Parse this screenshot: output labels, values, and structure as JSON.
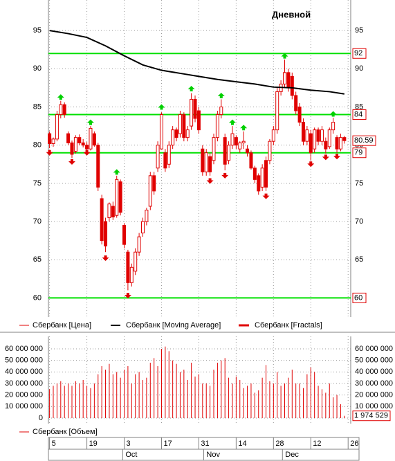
{
  "chart_data": [
    {
      "type": "candlestick",
      "title": "Дневной",
      "xlim": [
        -0.3,
        80.7
      ],
      "ylim": [
        57.5,
        99
      ],
      "yticks": [
        60,
        65,
        70,
        75,
        80,
        85,
        90,
        95
      ],
      "grid": true,
      "levels": [
        92,
        84,
        79,
        60
      ],
      "level_color": "#00e000",
      "current": 80.59,
      "series": [
        {
          "name": "Сбербанк [Цена]",
          "type": "candlestick",
          "color": "#e00000",
          "x": [
            0,
            1,
            2,
            3,
            4,
            5,
            6,
            7,
            8,
            9,
            10,
            11,
            12,
            13,
            14,
            15,
            16,
            17,
            18,
            19,
            20,
            21,
            22,
            23,
            24,
            25,
            26,
            27,
            28,
            29,
            30,
            31,
            32,
            33,
            34,
            35,
            36,
            37,
            38,
            39,
            40,
            41,
            42,
            43,
            44,
            45,
            46,
            47,
            48,
            49,
            50,
            51,
            52,
            53,
            54,
            55,
            56,
            57,
            58,
            59,
            60,
            61,
            62,
            63,
            64,
            65,
            66,
            67,
            68,
            69,
            70,
            71,
            72,
            73,
            74,
            75,
            76,
            77,
            78,
            79
          ],
          "open": [
            81.5,
            80.2,
            80.8,
            84.0,
            85.3,
            81.5,
            80.3,
            79.2,
            81.0,
            80.3,
            80.0,
            79.5,
            81.5,
            80.0,
            73.0,
            70.0,
            70.5,
            72.0,
            70.8,
            75.2,
            69.5,
            66.0,
            62.0,
            63.5,
            66.0,
            68.5,
            70.0,
            72.0,
            76.0,
            77.0,
            79.5,
            79.0,
            77.5,
            80.0,
            82.0,
            81.5,
            84.0,
            81.0,
            82.5,
            86.0,
            84.5,
            79.5,
            76.5,
            78.5,
            78.0,
            81.0,
            84.0,
            81.0,
            78.0,
            80.0,
            81.0,
            79.5,
            80.3,
            79.5,
            79.0,
            77.0,
            76.0,
            74.5,
            78.0,
            78.0,
            80.5,
            82.0,
            87.0,
            88.0,
            89.5,
            89.0,
            86.5,
            85.0,
            83.0,
            80.5,
            81.5,
            79.5,
            82.0,
            80.5,
            80.5,
            79.8,
            82.0,
            81.0,
            79.5,
            81.0
          ],
          "high": [
            81.8,
            81.0,
            84.5,
            85.8,
            85.6,
            81.8,
            80.6,
            81.3,
            81.4,
            80.8,
            80.4,
            82.5,
            81.8,
            80.3,
            73.5,
            70.5,
            72.5,
            72.6,
            76.0,
            75.5,
            69.8,
            66.3,
            64.5,
            66.5,
            68.5,
            70.5,
            71.8,
            76.5,
            76.5,
            80.5,
            84.3,
            79.5,
            80.5,
            82.5,
            82.3,
            84.5,
            84.3,
            82.5,
            86.8,
            86.5,
            85.0,
            80.0,
            79.5,
            79.0,
            81.5,
            84.5,
            86.0,
            81.5,
            80.5,
            82.5,
            81.3,
            80.5,
            81.8,
            80.0,
            79.3,
            77.3,
            76.3,
            77.5,
            78.5,
            80.8,
            82.5,
            87.5,
            88.5,
            91.2,
            90.0,
            89.5,
            87.0,
            85.5,
            83.5,
            82.5,
            82.0,
            82.3,
            82.3,
            82.5,
            81.0,
            82.3,
            83.6,
            81.3,
            81.5,
            81.2
          ],
          "low": [
            79.6,
            79.8,
            80.5,
            83.5,
            83.6,
            80.0,
            78.3,
            78.9,
            80.0,
            79.7,
            79.0,
            79.3,
            79.8,
            74.0,
            67.0,
            66.0,
            70.0,
            70.2,
            70.5,
            70.8,
            66.5,
            61.0,
            61.5,
            63.0,
            65.5,
            68.0,
            69.5,
            71.5,
            73.5,
            76.5,
            79.5,
            76.5,
            77.0,
            79.5,
            80.5,
            81.0,
            80.5,
            80.5,
            82.0,
            83.0,
            81.5,
            76.0,
            76.0,
            76.0,
            77.5,
            80.5,
            83.5,
            76.7,
            77.5,
            79.5,
            79.5,
            79.0,
            79.5,
            78.5,
            76.8,
            75.0,
            73.5,
            74.0,
            74.0,
            77.5,
            80.0,
            81.5,
            86.5,
            87.5,
            87.0,
            86.0,
            84.0,
            82.5,
            80.0,
            80.0,
            78.0,
            79.0,
            80.0,
            80.0,
            78.9,
            79.5,
            81.5,
            79.0,
            79.2,
            80.2
          ],
          "close": [
            80.2,
            80.8,
            84.0,
            85.3,
            84.0,
            80.3,
            78.8,
            81.0,
            80.3,
            80.0,
            79.5,
            82.2,
            80.0,
            74.5,
            67.5,
            66.8,
            72.3,
            70.6,
            75.5,
            71.2,
            67.0,
            62.0,
            64.0,
            66.0,
            68.0,
            70.0,
            71.5,
            76.0,
            74.0,
            80.0,
            84.0,
            77.0,
            80.0,
            82.0,
            81.0,
            84.0,
            81.0,
            82.0,
            86.0,
            83.5,
            82.0,
            76.5,
            79.0,
            76.5,
            81.0,
            84.0,
            85.0,
            77.5,
            80.0,
            81.5,
            80.0,
            80.3,
            80.5,
            79.0,
            77.0,
            75.5,
            74.0,
            77.0,
            74.5,
            80.5,
            82.0,
            87.0,
            88.0,
            89.5,
            87.5,
            86.5,
            84.5,
            83.0,
            80.5,
            82.0,
            79.0,
            82.0,
            80.5,
            82.0,
            79.5,
            82.0,
            83.0,
            79.5,
            81.0,
            80.59
          ]
        },
        {
          "name": "Сбербанк [Moving Average]",
          "type": "line",
          "color": "#000000",
          "x": [
            0,
            5,
            10,
            15,
            20,
            25,
            30,
            35,
            40,
            45,
            50,
            55,
            60,
            65,
            70,
            75,
            79
          ],
          "values": [
            95.0,
            94.6,
            94.1,
            93.0,
            91.7,
            90.5,
            89.8,
            89.4,
            89.0,
            88.6,
            88.3,
            88.0,
            87.6,
            87.5,
            87.2,
            87.0,
            86.7
          ]
        },
        {
          "name": "Сбербанк [Fractals]",
          "type": "fractals",
          "color": "#e00000",
          "up_color": "#00d000",
          "up": {
            "x": [
              3,
              11,
              18,
              30,
              38,
              46,
              49,
              52,
              63,
              76
            ],
            "values": [
              86.3,
              83.0,
              76.5,
              85.0,
              87.4,
              86.5,
              83.0,
              82.3,
              91.7,
              84.1
            ]
          },
          "down": {
            "x": [
              0,
              6,
              10,
              15,
              21,
              43,
              47,
              58,
              70,
              74,
              77
            ],
            "values": [
              79.0,
              77.8,
              79.0,
              65.2,
              60.3,
              75.3,
              76.0,
              73.3,
              77.5,
              78.4,
              78.5
            ]
          }
        }
      ]
    },
    {
      "type": "bar",
      "ylim": [
        -4800000,
        70800000
      ],
      "yticks": [
        0,
        {
          "value": 10000000,
          "label": "10 000 000"
        },
        {
          "value": 20000000,
          "label": "20 000 000"
        },
        {
          "value": 30000000,
          "label": "30 000 000"
        },
        {
          "value": 40000000,
          "label": "40 000 000"
        },
        {
          "value": 50000000,
          "label": "50 000 000"
        },
        {
          "value": 60000000,
          "label": "60 000 000"
        }
      ],
      "xticks": [
        {
          "value": 0,
          "label": "5"
        },
        {
          "value": 10,
          "label": "19"
        },
        {
          "value": 20,
          "label": "3"
        },
        {
          "value": 30,
          "label": "17"
        },
        {
          "value": 40,
          "label": "31"
        },
        {
          "value": 50,
          "label": "14"
        },
        {
          "value": 60,
          "label": "28"
        },
        {
          "value": 70,
          "label": "12"
        },
        {
          "value": 80,
          "label": "26"
        }
      ],
      "month_ticks": [
        {
          "value": 19.6,
          "label": "Oct"
        },
        {
          "value": 41.3,
          "label": "Nov"
        },
        {
          "value": 62.4,
          "label": "Dec"
        }
      ],
      "current": {
        "value": 1974529,
        "label": "1 974 529"
      },
      "series": [
        {
          "name": "Сбербанк [Объем]",
          "color": "#e00000",
          "x": [
            0,
            1,
            2,
            3,
            4,
            5,
            6,
            7,
            8,
            9,
            10,
            11,
            12,
            13,
            14,
            15,
            16,
            17,
            18,
            19,
            20,
            21,
            22,
            23,
            24,
            25,
            26,
            27,
            28,
            29,
            30,
            31,
            32,
            33,
            34,
            35,
            36,
            37,
            38,
            39,
            40,
            41,
            42,
            43,
            44,
            45,
            46,
            47,
            48,
            49,
            50,
            51,
            52,
            53,
            54,
            55,
            56,
            57,
            58,
            59,
            60,
            61,
            62,
            63,
            64,
            65,
            66,
            67,
            68,
            69,
            70,
            71,
            72,
            73,
            74,
            75,
            76,
            77,
            78,
            79
          ],
          "values": [
            25000000,
            28000000,
            30000000,
            32000000,
            28000000,
            30000000,
            28000000,
            32000000,
            30000000,
            33000000,
            28000000,
            26000000,
            30000000,
            38000000,
            45000000,
            42000000,
            47000000,
            38000000,
            40000000,
            35000000,
            42000000,
            45000000,
            30000000,
            38000000,
            40000000,
            33000000,
            35000000,
            48000000,
            52000000,
            45000000,
            60000000,
            62000000,
            58000000,
            50000000,
            47000000,
            40000000,
            42000000,
            33000000,
            48000000,
            36000000,
            38000000,
            30000000,
            30000000,
            28000000,
            42000000,
            48000000,
            50000000,
            52000000,
            35000000,
            30000000,
            36000000,
            33000000,
            26000000,
            28000000,
            30000000,
            22000000,
            24000000,
            35000000,
            46000000,
            32000000,
            30000000,
            40000000,
            28000000,
            30000000,
            35000000,
            42000000,
            30000000,
            30000000,
            26000000,
            38000000,
            44000000,
            40000000,
            28000000,
            25000000,
            22000000,
            30000000,
            18000000,
            20000000,
            12000000,
            1974529
          ]
        }
      ]
    }
  ]
}
